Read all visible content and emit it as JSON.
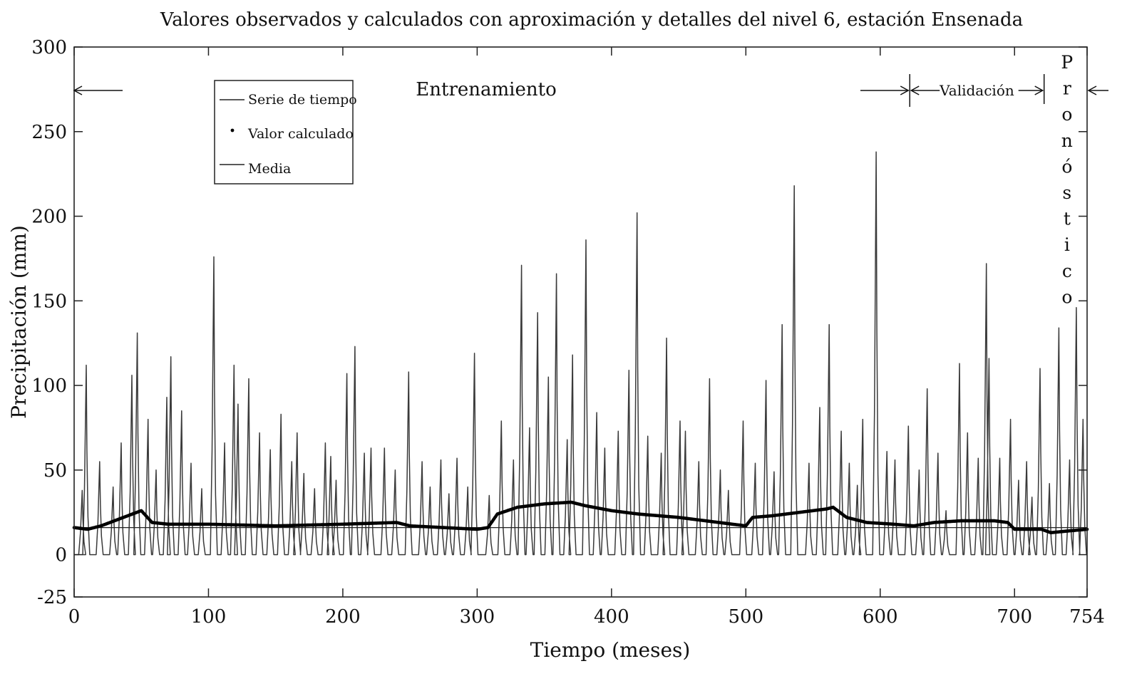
{
  "chart_data": {
    "type": "line",
    "title": "Valores observados y calculados con aproximación y detalles del nivel 6, estación Ensenada",
    "xlabel": "Tiempo (meses)",
    "ylabel": "Precipitación (mm)",
    "xlim": [
      0,
      754
    ],
    "ylim": [
      -25,
      300
    ],
    "xticks": [
      "0",
      "100",
      "200",
      "300",
      "400",
      "500",
      "600",
      "700",
      "754"
    ],
    "xtick_values": [
      0,
      100,
      200,
      300,
      400,
      500,
      600,
      700,
      754
    ],
    "yticks": [
      "300",
      "250",
      "200",
      "150",
      "100",
      "50",
      "0",
      "-25"
    ],
    "ytick_values": [
      300,
      250,
      200,
      150,
      100,
      50,
      0,
      -25
    ],
    "grid": false,
    "legend": {
      "placement": "top-left",
      "entries": [
        "Serie de tiempo",
        "Valor calculado",
        "Media"
      ]
    },
    "phases": {
      "training": {
        "label": "Entrenamiento",
        "range": [
          0,
          622
        ]
      },
      "validation": {
        "label": "Validación",
        "range": [
          622,
          722
        ]
      },
      "forecast": {
        "label": "Pronóstico",
        "letters": [
          "P",
          "r",
          "o",
          "n",
          "ó",
          "s",
          "t",
          "i",
          "c",
          "o"
        ],
        "range": [
          722,
          754
        ]
      }
    },
    "series": [
      {
        "name": "Serie de tiempo",
        "style": "thin-line",
        "peaks": [
          [
            6,
            38
          ],
          [
            9,
            112
          ],
          [
            19,
            55
          ],
          [
            29,
            40
          ],
          [
            35,
            66
          ],
          [
            43,
            106
          ],
          [
            47,
            131
          ],
          [
            55,
            80
          ],
          [
            61,
            50
          ],
          [
            69,
            93
          ],
          [
            72,
            117
          ],
          [
            80,
            85
          ],
          [
            87,
            54
          ],
          [
            95,
            39
          ],
          [
            104,
            176
          ],
          [
            112,
            66
          ],
          [
            119,
            112
          ],
          [
            122,
            89
          ],
          [
            130,
            104
          ],
          [
            138,
            72
          ],
          [
            146,
            62
          ],
          [
            154,
            83
          ],
          [
            162,
            55
          ],
          [
            166,
            72
          ],
          [
            171,
            48
          ],
          [
            179,
            39
          ],
          [
            187,
            66
          ],
          [
            191,
            58
          ],
          [
            195,
            44
          ],
          [
            203,
            107
          ],
          [
            209,
            123
          ],
          [
            216,
            60
          ],
          [
            221,
            63
          ],
          [
            231,
            63
          ],
          [
            239,
            50
          ],
          [
            249,
            108
          ],
          [
            259,
            55
          ],
          [
            265,
            40
          ],
          [
            273,
            56
          ],
          [
            279,
            36
          ],
          [
            285,
            57
          ],
          [
            293,
            40
          ],
          [
            298,
            119
          ],
          [
            309,
            35
          ],
          [
            318,
            79
          ],
          [
            327,
            56
          ],
          [
            333,
            171
          ],
          [
            339,
            75
          ],
          [
            345,
            143
          ],
          [
            353,
            105
          ],
          [
            359,
            166
          ],
          [
            367,
            68
          ],
          [
            371,
            118
          ],
          [
            381,
            186
          ],
          [
            389,
            84
          ],
          [
            395,
            63
          ],
          [
            405,
            73
          ],
          [
            413,
            109
          ],
          [
            419,
            202
          ],
          [
            427,
            70
          ],
          [
            437,
            60
          ],
          [
            441,
            128
          ],
          [
            451,
            79
          ],
          [
            455,
            73
          ],
          [
            465,
            55
          ],
          [
            473,
            104
          ],
          [
            481,
            50
          ],
          [
            487,
            38
          ],
          [
            498,
            79
          ],
          [
            507,
            54
          ],
          [
            515,
            103
          ],
          [
            521,
            49
          ],
          [
            527,
            136
          ],
          [
            536,
            218
          ],
          [
            547,
            54
          ],
          [
            555,
            87
          ],
          [
            562,
            136
          ],
          [
            571,
            73
          ],
          [
            577,
            54
          ],
          [
            583,
            41
          ],
          [
            587,
            80
          ],
          [
            597,
            238
          ],
          [
            605,
            61
          ],
          [
            611,
            56
          ],
          [
            621,
            76
          ],
          [
            629,
            50
          ],
          [
            635,
            98
          ],
          [
            643,
            60
          ],
          [
            649,
            26
          ],
          [
            659,
            113
          ],
          [
            665,
            72
          ],
          [
            673,
            57
          ],
          [
            679,
            172
          ],
          [
            681,
            116
          ],
          [
            689,
            57
          ],
          [
            697,
            80
          ],
          [
            703,
            44
          ],
          [
            709,
            55
          ],
          [
            713,
            34
          ],
          [
            719,
            110
          ],
          [
            726,
            42
          ],
          [
            733,
            134
          ],
          [
            741,
            56
          ],
          [
            746,
            146
          ],
          [
            751,
            80
          ]
        ]
      },
      {
        "name": "Valor calculado",
        "style": "dots",
        "values": [
          [
            0,
            16
          ],
          [
            10,
            15
          ],
          [
            20,
            17
          ],
          [
            30,
            20
          ],
          [
            40,
            23
          ],
          [
            50,
            26
          ],
          [
            58,
            19
          ],
          [
            70,
            18
          ],
          [
            100,
            18
          ],
          [
            150,
            17
          ],
          [
            200,
            18
          ],
          [
            240,
            19
          ],
          [
            250,
            17
          ],
          [
            300,
            15
          ],
          [
            308,
            16
          ],
          [
            315,
            24
          ],
          [
            330,
            28
          ],
          [
            350,
            30
          ],
          [
            370,
            31
          ],
          [
            380,
            29
          ],
          [
            400,
            26
          ],
          [
            420,
            24
          ],
          [
            450,
            22
          ],
          [
            480,
            19
          ],
          [
            500,
            17
          ],
          [
            505,
            22
          ],
          [
            520,
            23
          ],
          [
            540,
            25
          ],
          [
            560,
            27
          ],
          [
            565,
            28
          ],
          [
            575,
            22
          ],
          [
            590,
            19
          ],
          [
            610,
            18
          ],
          [
            625,
            17
          ],
          [
            640,
            19
          ],
          [
            660,
            20
          ],
          [
            685,
            20
          ],
          [
            695,
            19
          ],
          [
            700,
            15
          ],
          [
            720,
            15
          ],
          [
            727,
            13
          ],
          [
            740,
            14
          ],
          [
            754,
            15
          ]
        ]
      },
      {
        "name": "Media",
        "style": "horizontal-line",
        "value": 16
      }
    ]
  }
}
